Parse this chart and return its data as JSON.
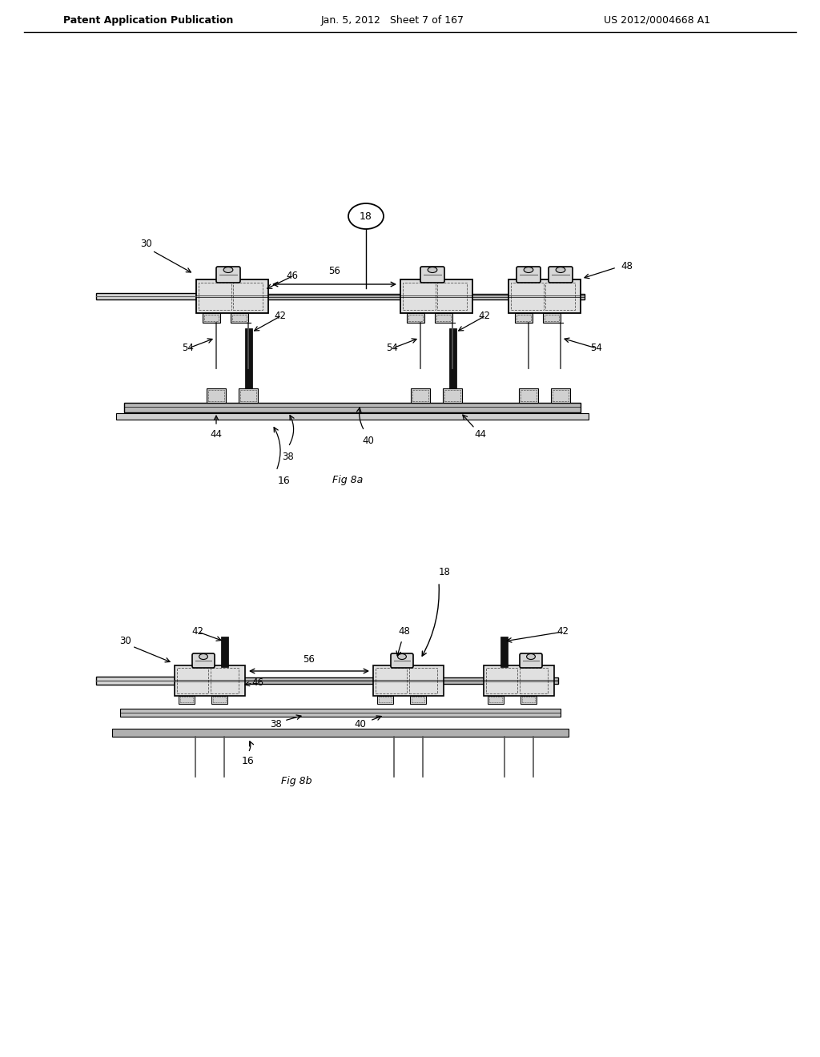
{
  "background_color": "#ffffff",
  "header_left": "Patent Application Publication",
  "header_center": "Jan. 5, 2012   Sheet 7 of 167",
  "header_right": "US 2012/0004668 A1",
  "fig_a_label": "Fig 8a",
  "fig_b_label": "Fig 8b",
  "line_color": "#000000",
  "dark_gray": "#555555",
  "fill_gray": "#e0e0e0",
  "rail_gray": "#aaaaaa",
  "black_block": "#111111"
}
